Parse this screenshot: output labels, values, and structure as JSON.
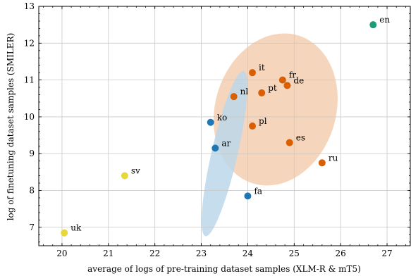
{
  "chart_data": {
    "type": "scatter",
    "title": "",
    "xlabel": "average of logs of pre-training dataset samples (XLM-R & mT5)",
    "ylabel": "log of finetuning dataset samples (SMILER)",
    "xlim": [
      19.5,
      27.5
    ],
    "ylim": [
      6.5,
      13
    ],
    "xticks": [
      20,
      21,
      22,
      23,
      24,
      25,
      26,
      27
    ],
    "yticks": [
      7,
      8,
      9,
      10,
      11,
      12,
      13
    ],
    "grid": true,
    "colors": {
      "green": "#1b9e77",
      "orange": "#d95f02",
      "blue": "#1f78b4",
      "yellow": "#e6d83a",
      "orange_cluster": "#f3cfb0",
      "blue_cluster": "#bcd7ea"
    },
    "points": [
      {
        "label": "en",
        "x": 26.7,
        "y": 12.5,
        "color": "green"
      },
      {
        "label": "it",
        "x": 24.1,
        "y": 11.2,
        "color": "orange"
      },
      {
        "label": "fr",
        "x": 24.75,
        "y": 11.0,
        "color": "orange"
      },
      {
        "label": "de",
        "x": 24.85,
        "y": 10.85,
        "color": "orange"
      },
      {
        "label": "nl",
        "x": 23.7,
        "y": 10.55,
        "color": "orange"
      },
      {
        "label": "pt",
        "x": 24.3,
        "y": 10.65,
        "color": "orange"
      },
      {
        "label": "pl",
        "x": 24.1,
        "y": 9.75,
        "color": "orange"
      },
      {
        "label": "es",
        "x": 24.9,
        "y": 9.3,
        "color": "orange"
      },
      {
        "label": "ru",
        "x": 25.6,
        "y": 8.75,
        "color": "orange"
      },
      {
        "label": "ko",
        "x": 23.2,
        "y": 9.85,
        "color": "blue"
      },
      {
        "label": "ar",
        "x": 23.3,
        "y": 9.15,
        "color": "blue"
      },
      {
        "label": "fa",
        "x": 24.0,
        "y": 7.85,
        "color": "blue"
      },
      {
        "label": "sv",
        "x": 21.35,
        "y": 8.4,
        "color": "yellow"
      },
      {
        "label": "uk",
        "x": 20.05,
        "y": 6.85,
        "color": "yellow"
      }
    ],
    "clusters": [
      {
        "color": "orange_cluster",
        "cx": 24.6,
        "cy": 10.2,
        "rx": 1.3,
        "ry": 2.1,
        "angle_deg": 17
      },
      {
        "color": "blue_cluster",
        "cx": 23.5,
        "cy": 9.0,
        "rx": 0.28,
        "ry": 2.3,
        "angle_deg": 13
      }
    ]
  }
}
